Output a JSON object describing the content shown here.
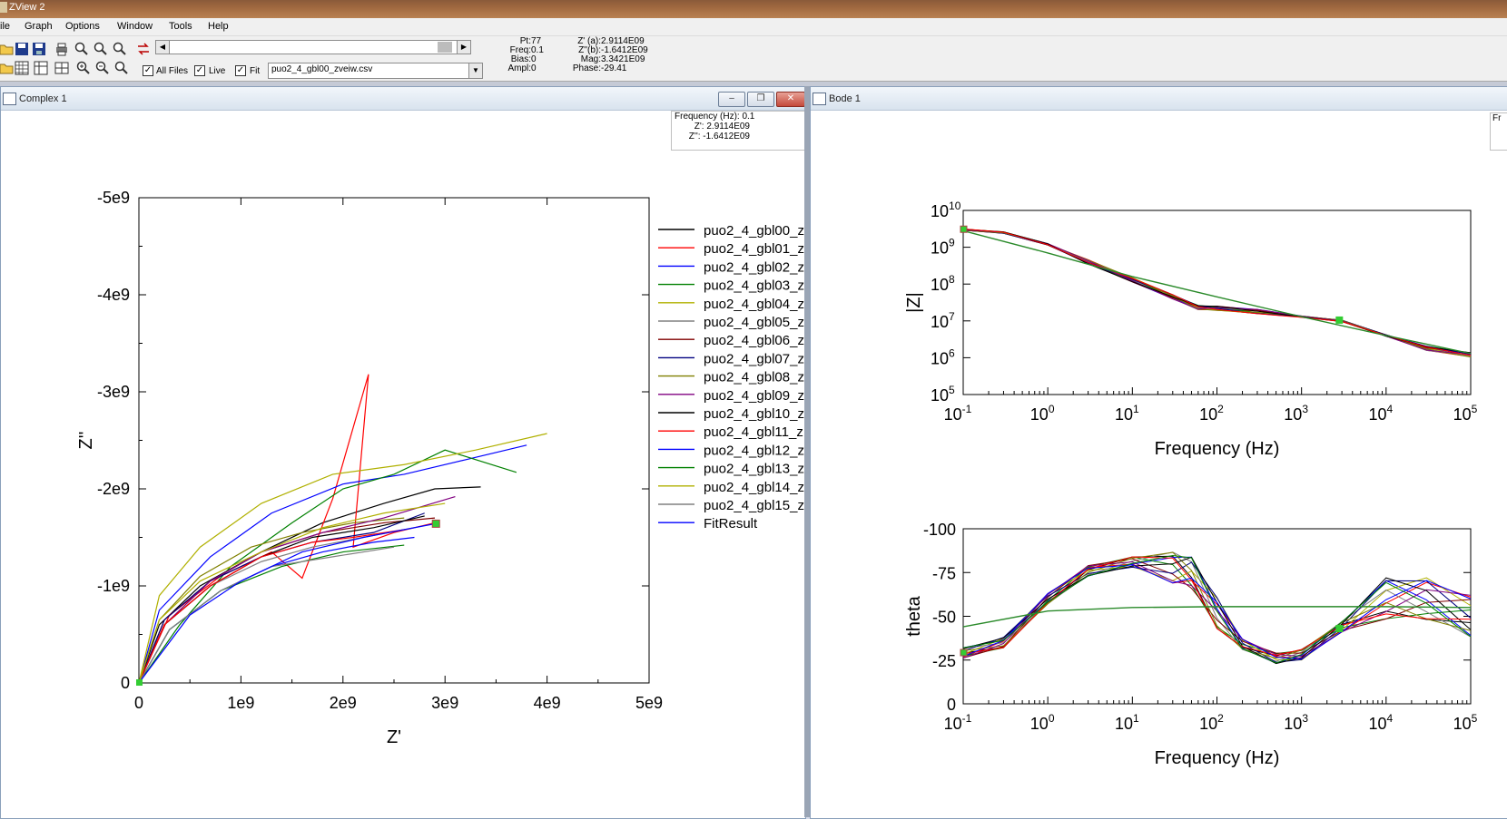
{
  "window": {
    "title": "ZView 2"
  },
  "menu": [
    "ile",
    "Graph",
    "Options",
    "Window",
    "Tools",
    "Help"
  ],
  "toolbar": {
    "all_files_label": "All Files",
    "live_label": "Live",
    "fit_label": "Fit",
    "file_select_value": "puo2_4_gbl00_zveiw.csv",
    "icons_row1": [
      "open-folder-icon",
      "save-icon",
      "save-as-icon",
      "print-icon",
      "zoom-fit-icon",
      "zoom-fit-alt-icon",
      "zoom-reset-icon",
      "swap-icon"
    ],
    "icons_row2": [
      "open-folder-icon",
      "grid-icon",
      "table-icon",
      "frame-icon",
      "zoom-in-icon",
      "zoom-out-icon",
      "zoom-icon"
    ]
  },
  "readout": {
    "left": [
      {
        "label": "Pt:",
        "value": "77"
      },
      {
        "label": "Freq:",
        "value": "0.1"
      },
      {
        "label": "Bias:",
        "value": "0"
      },
      {
        "label": "Ampl:",
        "value": "0"
      }
    ],
    "right": [
      {
        "label": "Z' (a):",
        "value": "2.9114E09"
      },
      {
        "label": "Z''(b):",
        "value": "-1.6412E09"
      },
      {
        "label": "Mag:",
        "value": "3.3421E09"
      },
      {
        "label": "Phase:",
        "value": "-29.41"
      }
    ]
  },
  "complex_window": {
    "title": "Complex 1",
    "info": [
      "Frequency (Hz): 0.1",
      "Z': 2.9114E09",
      "Z'': -1.6412E09"
    ]
  },
  "bode_window": {
    "title": "Bode 1",
    "edge_text": "Fr"
  },
  "legend": [
    "puo2_4_gbl00_z",
    "puo2_4_gbl01_z",
    "puo2_4_gbl02_z",
    "puo2_4_gbl03_z",
    "puo2_4_gbl04_z",
    "puo2_4_gbl05_z",
    "puo2_4_gbl06_z",
    "puo2_4_gbl07_z",
    "puo2_4_gbl08_z",
    "puo2_4_gbl09_z",
    "puo2_4_gbl10_z",
    "puo2_4_gbl11_z",
    "puo2_4_gbl12_z",
    "puo2_4_gbl13_z",
    "puo2_4_gbl14_z",
    "puo2_4_gbl15_z",
    "FitResult"
  ],
  "series_colors": [
    "#000000",
    "#ff0000",
    "#0000ff",
    "#008000",
    "#b0b000",
    "#808080",
    "#800000",
    "#000080",
    "#808000",
    "#800080",
    "#000000",
    "#ff0000",
    "#0000ff",
    "#008000",
    "#b0b000",
    "#808080",
    "#0000ff"
  ],
  "chart_data": [
    {
      "type": "line",
      "xlabel": "Z'",
      "ylabel": "Z''",
      "xlim": [
        0,
        5000000000.0
      ],
      "ylim": [
        0,
        -5000000000.0
      ],
      "x_ticks": [
        "0",
        "1e9",
        "2e9",
        "3e9",
        "4e9",
        "5e9"
      ],
      "y_ticks": [
        "0",
        "-1e9",
        "-2e9",
        "-3e9",
        "-4e9",
        "-5e9"
      ],
      "series": [
        {
          "name": "puo2_4_gbl00_z",
          "x": [
            0,
            200000000.0,
            600000000.0,
            1200000000.0,
            1800000000.0,
            2400000000.0,
            2900000000.0,
            3350000000.0
          ],
          "y": [
            0,
            -600000000.0,
            -1000000000.0,
            -1350000000.0,
            -1650000000.0,
            -1850000000.0,
            -2000000000.0,
            -2020000000.0
          ]
        },
        {
          "name": "puo2_4_gbl01_z",
          "x": [
            0,
            300000000.0,
            800000000.0,
            1300000000.0,
            1600000000.0,
            1900000000.0,
            2250000000.0,
            2100000000.0,
            2500000000.0,
            2900000000.0
          ],
          "y": [
            0,
            -700000000.0,
            -1100000000.0,
            -1350000000.0,
            -1080000000.0,
            -1900000000.0,
            -3180000000.0,
            -1400000000.0,
            -1550000000.0,
            -1650000000.0
          ]
        },
        {
          "name": "puo2_4_gbl02_z",
          "x": [
            0,
            200000000.0,
            700000000.0,
            1300000000.0,
            2000000000.0,
            2600000000.0,
            3200000000.0,
            3800000000.0
          ],
          "y": [
            0,
            -750000000.0,
            -1300000000.0,
            -1750000000.0,
            -2050000000.0,
            -2150000000.0,
            -2300000000.0,
            -2450000000.0
          ]
        },
        {
          "name": "puo2_4_gbl03_z",
          "x": [
            0,
            400000000.0,
            900000000.0,
            1500000000.0,
            2000000000.0,
            2500000000.0,
            3000000000.0,
            3700000000.0
          ],
          "y": [
            0,
            -600000000.0,
            -1200000000.0,
            -1650000000.0,
            -2000000000.0,
            -2150000000.0,
            -2400000000.0,
            -2170000000.0
          ]
        },
        {
          "name": "puo2_4_gbl04_z",
          "x": [
            0,
            200000000.0,
            600000000.0,
            1200000000.0,
            1900000000.0,
            2600000000.0,
            3300000000.0,
            4000000000.0
          ],
          "y": [
            0,
            -900000000.0,
            -1400000000.0,
            -1850000000.0,
            -2150000000.0,
            -2250000000.0,
            -2400000000.0,
            -2570000000.0
          ]
        },
        {
          "name": "puo2_4_gbl05_z",
          "x": [
            0,
            250000000.0,
            700000000.0,
            1200000000.0,
            1700000000.0,
            2200000000.0,
            2700000000.0
          ],
          "y": [
            0,
            -600000000.0,
            -1000000000.0,
            -1250000000.0,
            -1400000000.0,
            -1500000000.0,
            -1600000000.0
          ]
        },
        {
          "name": "puo2_4_gbl06_z",
          "x": [
            0,
            250000000.0,
            700000000.0,
            1200000000.0,
            1800000000.0,
            2400000000.0,
            2900000000.0
          ],
          "y": [
            0,
            -650000000.0,
            -1050000000.0,
            -1350000000.0,
            -1550000000.0,
            -1650000000.0,
            -1700000000.0
          ]
        },
        {
          "name": "puo2_4_gbl07_z",
          "x": [
            0,
            250000000.0,
            700000000.0,
            1200000000.0,
            1700000000.0,
            2300000000.0,
            2800000000.0
          ],
          "y": [
            0,
            -650000000.0,
            -1050000000.0,
            -1300000000.0,
            -1450000000.0,
            -1550000000.0,
            -1750000000.0
          ]
        },
        {
          "name": "puo2_4_gbl08_z",
          "x": [
            0,
            200000000.0,
            600000000.0,
            1100000000.0,
            1600000000.0,
            2100000000.0,
            2600000000.0
          ],
          "y": [
            0,
            -650000000.0,
            -1100000000.0,
            -1400000000.0,
            -1550000000.0,
            -1650000000.0,
            -1700000000.0
          ]
        },
        {
          "name": "puo2_4_gbl09_z",
          "x": [
            0,
            250000000.0,
            700000000.0,
            1200000000.0,
            1800000000.0,
            2400000000.0,
            3100000000.0
          ],
          "y": [
            0,
            -600000000.0,
            -1050000000.0,
            -1350000000.0,
            -1550000000.0,
            -1700000000.0,
            -1920000000.0
          ]
        },
        {
          "name": "puo2_4_gbl10_z",
          "x": [
            0,
            250000000.0,
            700000000.0,
            1200000000.0,
            1700000000.0,
            2300000000.0,
            2800000000.0
          ],
          "y": [
            0,
            -600000000.0,
            -1000000000.0,
            -1300000000.0,
            -1500000000.0,
            -1600000000.0,
            -1720000000.0
          ]
        },
        {
          "name": "puo2_4_gbl11_z",
          "x": [
            0,
            250000000.0,
            700000000.0,
            1200000000.0,
            1700000000.0,
            2100000000.0,
            2600000000.0
          ],
          "y": [
            0,
            -600000000.0,
            -1000000000.0,
            -1300000000.0,
            -1450000000.0,
            -1500000000.0,
            -1580000000.0
          ]
        },
        {
          "name": "puo2_4_gbl12_z",
          "x": [
            0,
            300000000.0,
            800000000.0,
            1300000000.0,
            1800000000.0,
            2300000000.0,
            2700000000.0
          ],
          "y": [
            0,
            -550000000.0,
            -950000000.0,
            -1200000000.0,
            -1350000000.0,
            -1450000000.0,
            -1500000000.0
          ]
        },
        {
          "name": "puo2_4_gbl13_z",
          "x": [
            0,
            300000000.0,
            800000000.0,
            1400000000.0,
            2000000000.0,
            2600000000.0
          ],
          "y": [
            0,
            -550000000.0,
            -950000000.0,
            -1200000000.0,
            -1350000000.0,
            -1420000000.0
          ]
        },
        {
          "name": "puo2_4_gbl14_z",
          "x": [
            0,
            200000000.0,
            600000000.0,
            1200000000.0,
            1800000000.0,
            2400000000.0,
            3000000000.0
          ],
          "y": [
            0,
            -650000000.0,
            -1050000000.0,
            -1350000000.0,
            -1600000000.0,
            -1750000000.0,
            -1850000000.0
          ]
        },
        {
          "name": "puo2_4_gbl15_z",
          "x": [
            0,
            300000000.0,
            800000000.0,
            1300000000.0,
            1900000000.0,
            2500000000.0
          ],
          "y": [
            0,
            -550000000.0,
            -950000000.0,
            -1200000000.0,
            -1300000000.0,
            -1400000000.0
          ]
        },
        {
          "name": "FitResult",
          "x": [
            0,
            500000000.0,
            1000000000.0,
            1600000000.0,
            2200000000.0,
            2900000000.0
          ],
          "y": [
            0,
            -700000000.0,
            -1050000000.0,
            -1350000000.0,
            -1500000000.0,
            -1640000000.0
          ]
        }
      ],
      "marker": {
        "x": 2911400000.0,
        "y": -1641200000.0
      }
    },
    {
      "type": "line",
      "xlabel": "Frequency (Hz)",
      "ylabel": "|Z|",
      "xscale": "log",
      "yscale": "log",
      "xlim": [
        0.1,
        100000
      ],
      "ylim": [
        100000,
        10000000000
      ],
      "x_tick_mantissa": "10",
      "x_tick_exponents": [
        "-1",
        "0",
        "1",
        "2",
        "3",
        "4",
        "5"
      ],
      "y_tick_exponents": [
        "5",
        "6",
        "7",
        "8",
        "9",
        "10"
      ],
      "data_freq": [
        0.1,
        0.3,
        1,
        3,
        10,
        30,
        60,
        100,
        300,
        1000,
        3000,
        10000,
        30000,
        100000
      ],
      "data_z": [
        3000000000.0,
        2500000000.0,
        1200000000.0,
        400000000.0,
        130000000.0,
        45000000.0,
        23000000.0,
        22000000.0,
        18000000.0,
        13000000.0,
        10000000.0,
        4000000.0,
        1800000.0,
        1200000.0
      ],
      "fit_freq": [
        0.1,
        1,
        10,
        100,
        1000,
        10000,
        100000
      ],
      "fit_z": [
        2800000000.0,
        700000000.0,
        160000000.0,
        45000000.0,
        13000000.0,
        4000000.0,
        1300000.0
      ],
      "marker": {
        "x": 2800,
        "y": 10500000.0
      }
    },
    {
      "type": "line",
      "xlabel": "Frequency (Hz)",
      "ylabel": "theta",
      "xscale": "log",
      "xlim": [
        0.1,
        100000
      ],
      "ylim": [
        0,
        -100
      ],
      "x_tick_mantissa": "10",
      "x_tick_exponents": [
        "-1",
        "0",
        "1",
        "2",
        "3",
        "4",
        "5"
      ],
      "y_ticks": [
        "0",
        "-25",
        "-50",
        "-75",
        "-100"
      ],
      "data_freq": [
        0.1,
        0.3,
        1,
        3,
        10,
        30,
        50,
        100,
        200,
        500,
        1000,
        3000,
        10000,
        30000,
        100000
      ],
      "data_theta": [
        -29,
        -35,
        -60,
        -76,
        -81,
        -78,
        -75,
        -52,
        -34,
        -26,
        -28,
        -44,
        -60,
        -60,
        -50
      ],
      "fit_freq": [
        0.1,
        1,
        10,
        100,
        1000,
        10000,
        100000
      ],
      "fit_theta": [
        -44,
        -53,
        -55,
        -55.5,
        -55.5,
        -55.5,
        -55
      ],
      "marker": {
        "x": 2800,
        "y": -43
      }
    }
  ]
}
